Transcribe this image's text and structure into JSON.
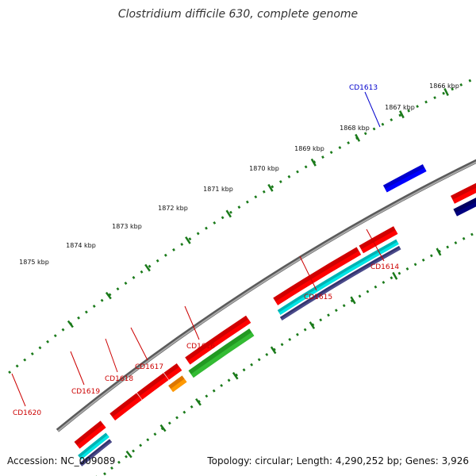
{
  "title": "Clostridium difficile 630, complete genome",
  "footer": {
    "accession": "Accession: NC_009089",
    "summary": "Topology: circular; Length: 4,290,252 bp; Genes: 3,926"
  },
  "scale": {
    "unit": "kbp",
    "ticks": [
      {
        "value": 1866,
        "label": "1866 kbp"
      },
      {
        "value": 1867,
        "label": "1867 kbp"
      },
      {
        "value": 1868,
        "label": "1868 kbp"
      },
      {
        "value": 1869,
        "label": "1869 kbp"
      },
      {
        "value": 1870,
        "label": "1870 kbp"
      },
      {
        "value": 1871,
        "label": "1871 kbp"
      },
      {
        "value": 1872,
        "label": "1872 kbp"
      },
      {
        "value": 1873,
        "label": "1873 kbp"
      },
      {
        "value": 1874,
        "label": "1874 kbp"
      },
      {
        "value": 1875,
        "label": "1875 kbp"
      }
    ]
  },
  "genes": [
    {
      "name": "CD1613",
      "strand": "forward",
      "color": "#0000ff",
      "labeled": true
    },
    {
      "name": "CD1614",
      "strand": "reverse",
      "color": "#ff0000",
      "labeled": true
    },
    {
      "name": "CD1615",
      "strand": "reverse",
      "color": "#ff0000",
      "labeled": true
    },
    {
      "name": "CD1616",
      "strand": "reverse",
      "color": "#ff0000",
      "labeled": true
    },
    {
      "name": "CD1617",
      "strand": "reverse",
      "color": "#ff0000",
      "labeled": true
    },
    {
      "name": "CD1618",
      "strand": "reverse",
      "color": "#ff0000",
      "labeled": true
    },
    {
      "name": "CD1619",
      "strand": "reverse",
      "color": "#ff0000",
      "labeled": true
    },
    {
      "name": "CD1620",
      "strand": "reverse",
      "color": "#ff0000",
      "labeled": true
    }
  ],
  "colors": {
    "cds": "#ff0000",
    "forward_gene": "#0000ff",
    "backbone": "#808080",
    "scale_ticks": "#1a7a1a",
    "label_reverse": "#cc0000",
    "label_forward": "#0000cc",
    "cyan_feature": "#00e5e5",
    "green_feature": "#33bb33",
    "orange_feature": "#ff9900",
    "navy_feature": "#000080",
    "slate_feature": "#4a4a8a"
  }
}
